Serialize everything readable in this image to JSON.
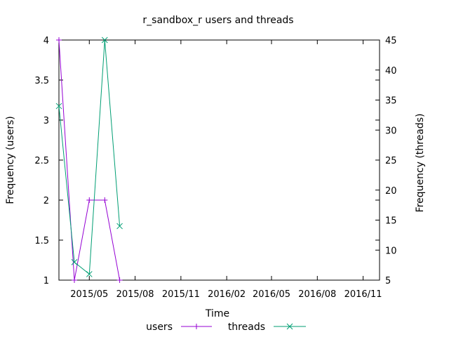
{
  "chart_data": {
    "type": "line",
    "title": "r_sandbox_r users and threads",
    "xlabel": "Time",
    "ylabel": "Frequency (users)",
    "y2label": "Frequency (threads)",
    "x_type": "date",
    "xlim": [
      "2015-03-01",
      "2016-12-04"
    ],
    "x_ticks": [
      "2015-05-01",
      "2015-08-01",
      "2015-11-01",
      "2016-02-01",
      "2016-05-01",
      "2016-08-01",
      "2016-11-01"
    ],
    "x_tick_labels": [
      "2015/05",
      "2015/08",
      "2015/11",
      "2016/02",
      "2016/05",
      "2016/08",
      "2016/11"
    ],
    "ylim": [
      1,
      4
    ],
    "y_ticks": [
      1,
      1.5,
      2,
      2.5,
      3,
      3.5,
      4
    ],
    "y_tick_labels": [
      "1",
      "1.5",
      "2",
      "2.5",
      "3",
      "3.5",
      "4"
    ],
    "y2lim": [
      5,
      45
    ],
    "y2_ticks": [
      5,
      10,
      15,
      20,
      25,
      30,
      35,
      40,
      45
    ],
    "y2_tick_labels": [
      "5",
      "10",
      "15",
      "20",
      "25",
      "30",
      "35",
      "40",
      "45"
    ],
    "legend_position": "bottom-center",
    "grid": false,
    "series": [
      {
        "name": "users",
        "axis": "left",
        "color": "#9400d3",
        "marker": "plus",
        "x": [
          "2015-03-01",
          "2015-04-01",
          "2015-05-01",
          "2015-06-01",
          "2015-07-01"
        ],
        "values": [
          4,
          1,
          2,
          2,
          1
        ]
      },
      {
        "name": "threads",
        "axis": "right",
        "color": "#009e73",
        "marker": "cross",
        "x": [
          "2015-03-01",
          "2015-04-01",
          "2015-05-01",
          "2015-06-01",
          "2015-07-01"
        ],
        "values": [
          34,
          8,
          6,
          45,
          14
        ]
      }
    ]
  }
}
